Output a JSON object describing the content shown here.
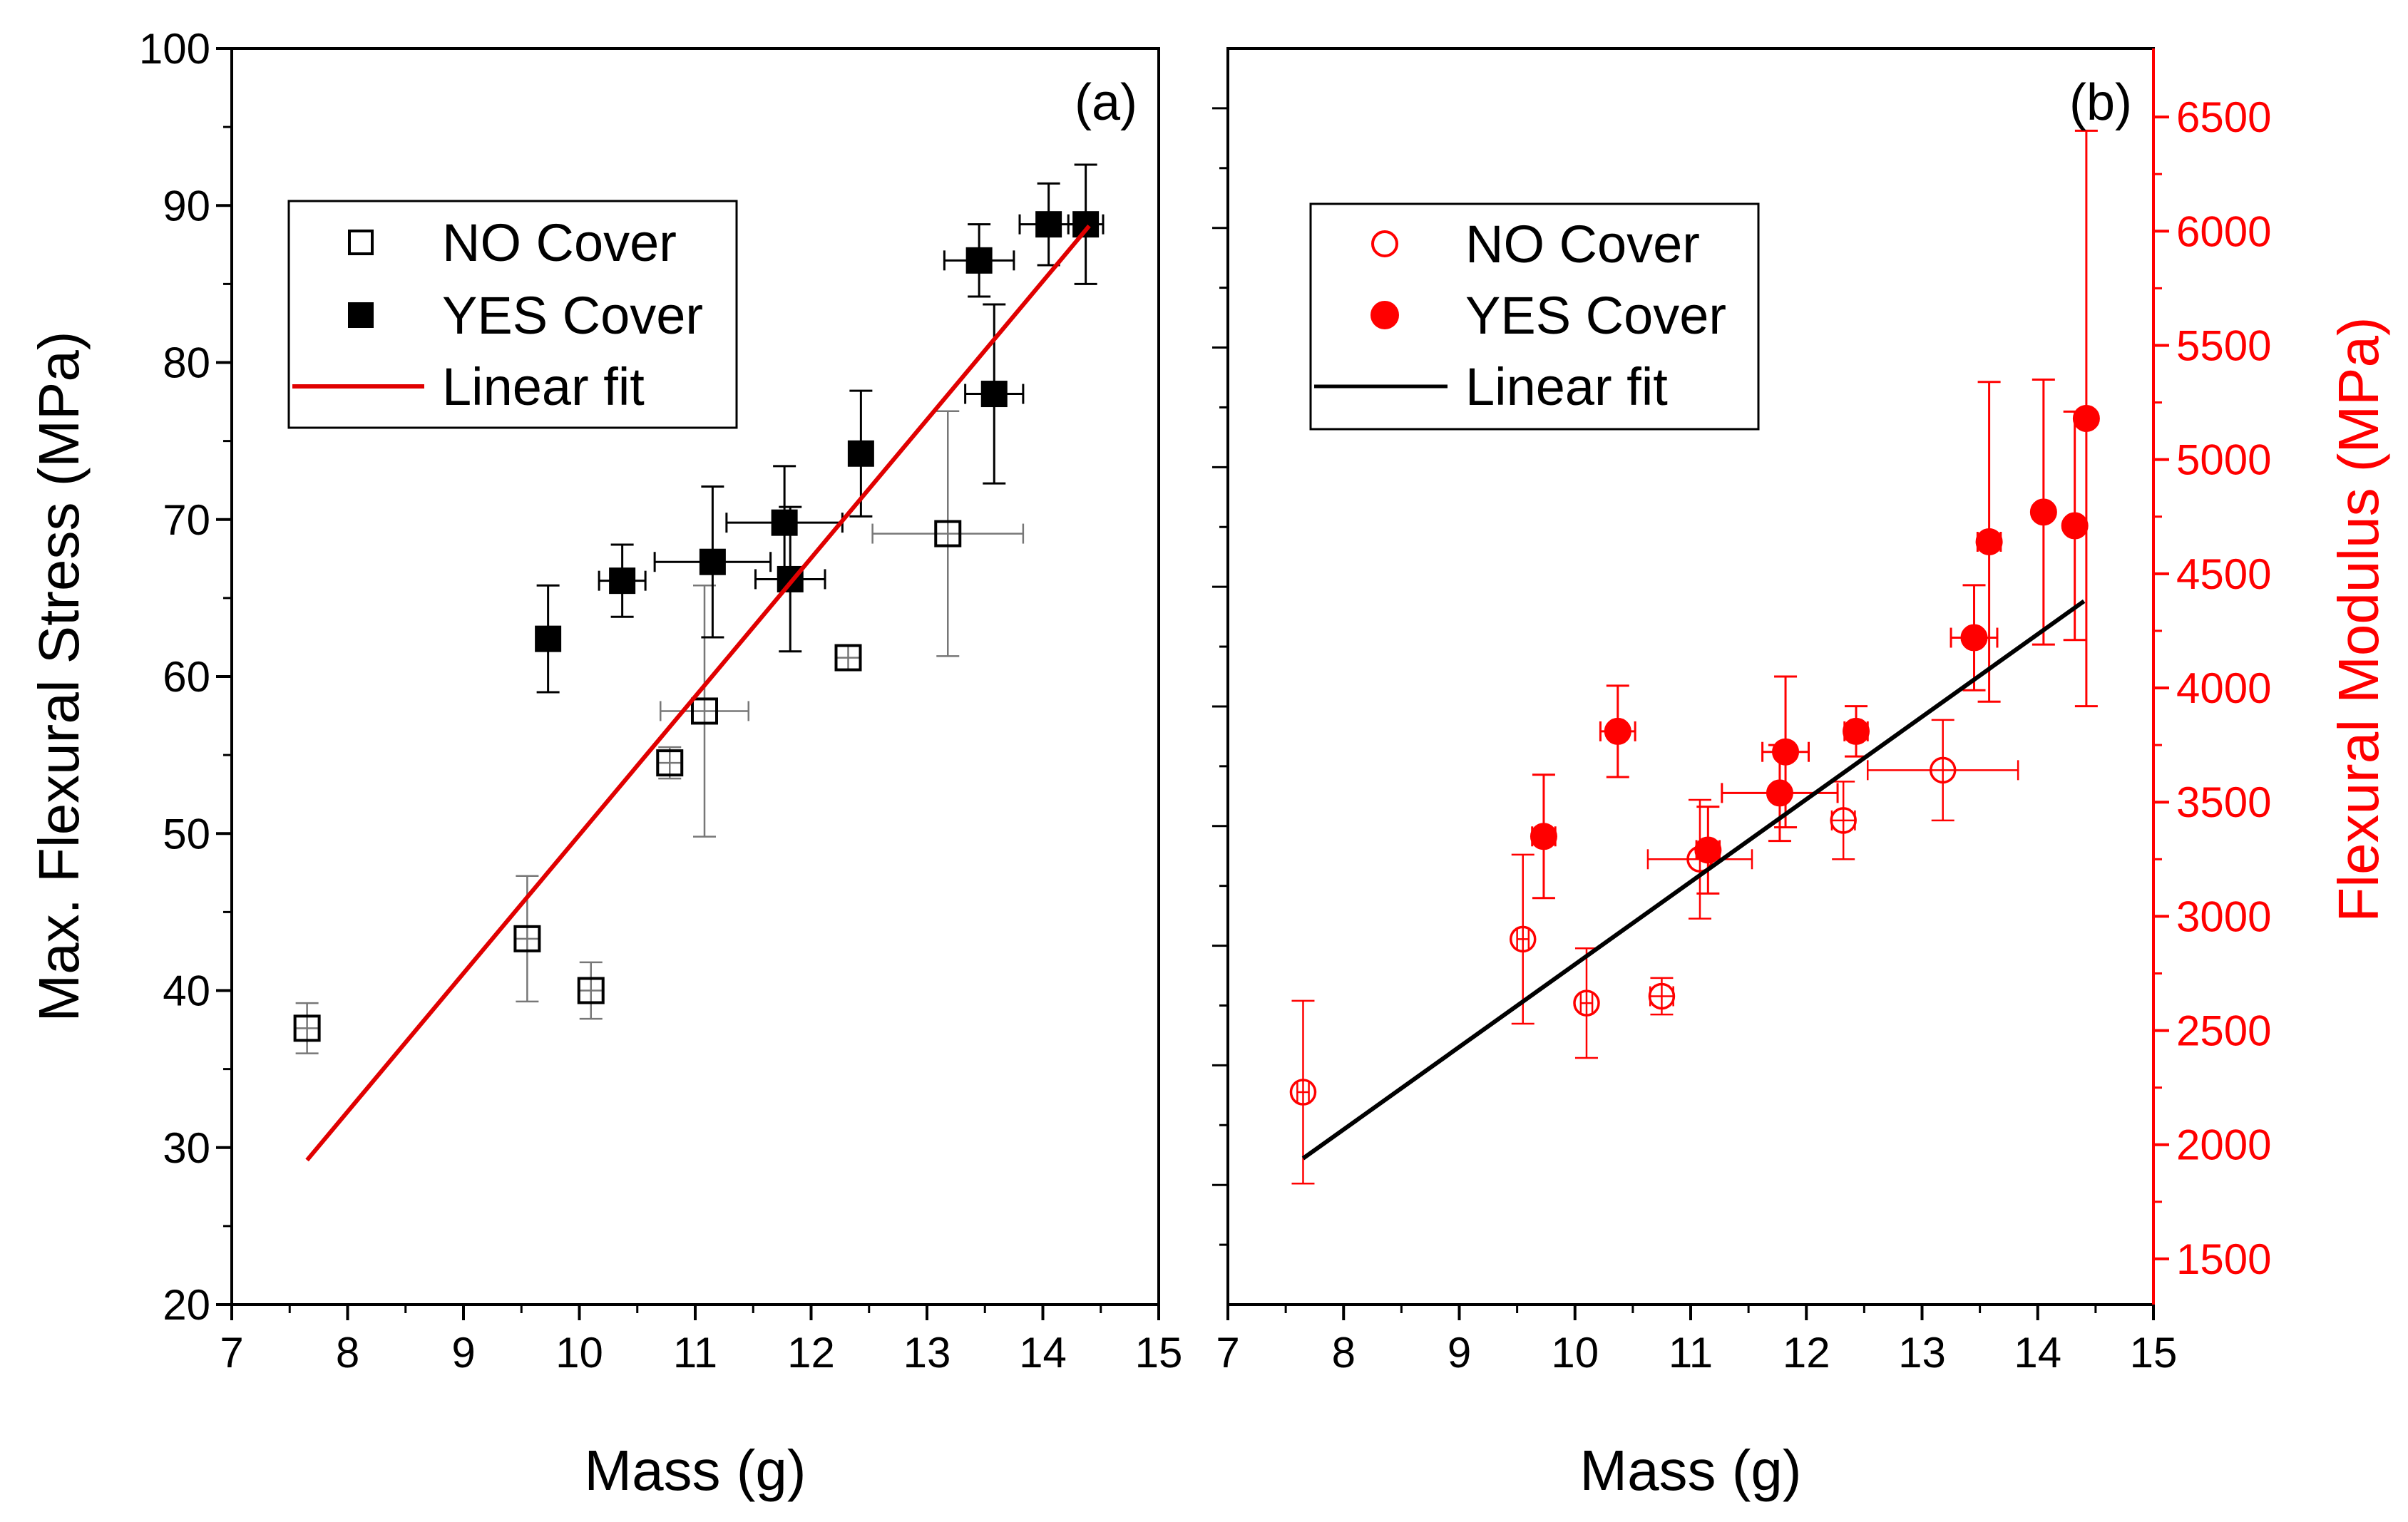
{
  "colors": {
    "red": "#ff0000",
    "black": "#000000",
    "fit_red": "#e00000"
  },
  "chart_data": [
    {
      "type": "scatter",
      "panel_label": "(a)",
      "title": "",
      "xlabel": "Mass (g)",
      "ylabel": "Max. Flexural Stress (MPa)",
      "xlim": [
        7,
        15
      ],
      "ylim": [
        20,
        100
      ],
      "xticks": [
        "7",
        "8",
        "9",
        "10",
        "11",
        "12",
        "13",
        "14",
        "15"
      ],
      "yticks": [
        "20",
        "30",
        "40",
        "50",
        "60",
        "70",
        "80",
        "90",
        "100"
      ],
      "legend_position": "upper-left",
      "series": [
        {
          "name": "NO Cover",
          "marker": "open-square",
          "color": "#000000",
          "points": [
            {
              "x": 7.65,
              "y": 37.6,
              "xerr": 0.1,
              "yerr": 1.6
            },
            {
              "x": 9.55,
              "y": 43.3,
              "xerr": 0.1,
              "yerr": 4.0
            },
            {
              "x": 10.1,
              "y": 40.0,
              "xerr": 0.1,
              "yerr": 1.8
            },
            {
              "x": 10.78,
              "y": 54.5,
              "xerr": 0.1,
              "yerr": 1.0
            },
            {
              "x": 11.08,
              "y": 57.8,
              "xerr": 0.38,
              "yerr": 8.0
            },
            {
              "x": 12.32,
              "y": 61.2,
              "xerr": 0.1,
              "yerr": 0.8
            },
            {
              "x": 13.18,
              "y": 69.1,
              "xerr": 0.65,
              "yerr": 7.8
            }
          ]
        },
        {
          "name": "YES Cover",
          "marker": "filled-square",
          "color": "#000000",
          "points": [
            {
              "x": 9.73,
              "y": 62.4,
              "xerr": 0.1,
              "yerr": 3.4
            },
            {
              "x": 10.37,
              "y": 66.1,
              "xerr": 0.2,
              "yerr": 2.3
            },
            {
              "x": 11.15,
              "y": 67.3,
              "xerr": 0.5,
              "yerr": 4.8
            },
            {
              "x": 11.77,
              "y": 69.8,
              "xerr": 0.5,
              "yerr": 3.6
            },
            {
              "x": 11.82,
              "y": 66.2,
              "xerr": 0.3,
              "yerr": 4.6
            },
            {
              "x": 12.43,
              "y": 74.2,
              "xerr": 0.1,
              "yerr": 4.0
            },
            {
              "x": 13.45,
              "y": 86.5,
              "xerr": 0.3,
              "yerr": 2.3
            },
            {
              "x": 13.58,
              "y": 78.0,
              "xerr": 0.25,
              "yerr": 5.7
            },
            {
              "x": 14.05,
              "y": 88.8,
              "xerr": 0.25,
              "yerr": 2.6
            },
            {
              "x": 14.37,
              "y": 88.8,
              "xerr": 0.15,
              "yerr": 3.8
            }
          ]
        },
        {
          "name": "Linear fit",
          "type": "line",
          "color": "#e00000",
          "points": [
            {
              "x": 7.65,
              "y": 29.2
            },
            {
              "x": 14.4,
              "y": 88.7
            }
          ]
        }
      ]
    },
    {
      "type": "scatter",
      "panel_label": "(b)",
      "title": "",
      "xlabel": "Mass (g)",
      "ylabel": "Flexural Modulus (MPa)",
      "xlim": [
        7,
        15
      ],
      "ylim": [
        1300,
        6800
      ],
      "xticks": [
        "7",
        "8",
        "9",
        "10",
        "11",
        "12",
        "13",
        "14",
        "15"
      ],
      "yticks": [
        "1500",
        "2000",
        "2500",
        "3000",
        "3500",
        "4000",
        "4500",
        "5000",
        "5500",
        "6000",
        "6500"
      ],
      "legend_position": "upper-left",
      "series": [
        {
          "name": "NO Cover",
          "marker": "open-circle",
          "color": "#ff0000",
          "points": [
            {
              "x": 7.65,
              "y": 2230,
              "xerr": 0.05,
              "yerr": 400
            },
            {
              "x": 9.55,
              "y": 2900,
              "xerr": 0.05,
              "yerr": 370
            },
            {
              "x": 10.1,
              "y": 2620,
              "xerr": 0.05,
              "yerr": 240
            },
            {
              "x": 10.75,
              "y": 2650,
              "xerr": 0.1,
              "yerr": 80
            },
            {
              "x": 11.08,
              "y": 3250,
              "xerr": 0.45,
              "yerr": 260
            },
            {
              "x": 12.32,
              "y": 3420,
              "xerr": 0.1,
              "yerr": 170
            },
            {
              "x": 13.18,
              "y": 3640,
              "xerr": 0.65,
              "yerr": 220
            }
          ]
        },
        {
          "name": "YES Cover",
          "marker": "filled-circle",
          "color": "#ff0000",
          "points": [
            {
              "x": 9.73,
              "y": 3350,
              "xerr": 0.1,
              "yerr": 270
            },
            {
              "x": 10.37,
              "y": 3810,
              "xerr": 0.15,
              "yerr": 200
            },
            {
              "x": 11.15,
              "y": 3290,
              "xerr": 0.1,
              "yerr": 190
            },
            {
              "x": 11.77,
              "y": 3540,
              "xerr": 0.5,
              "yerr": 210
            },
            {
              "x": 11.82,
              "y": 3720,
              "xerr": 0.2,
              "yerr": 330
            },
            {
              "x": 12.43,
              "y": 3810,
              "xerr": 0.1,
              "yerr": 110
            },
            {
              "x": 13.45,
              "y": 4220,
              "xerr": 0.2,
              "yerr": 230
            },
            {
              "x": 13.58,
              "y": 4640,
              "xerr": 0.1,
              "yerr": 700
            },
            {
              "x": 14.05,
              "y": 4770,
              "xerr": 0.05,
              "yerr": 580
            },
            {
              "x": 14.32,
              "y": 4710,
              "xerr": 0.05,
              "yerr": 500
            },
            {
              "x": 14.42,
              "y": 5180,
              "xerr": 0.05,
              "yerr": 1260
            }
          ]
        },
        {
          "name": "Linear fit",
          "type": "line",
          "color": "#000000",
          "points": [
            {
              "x": 7.65,
              "y": 1940
            },
            {
              "x": 14.4,
              "y": 4380
            }
          ]
        }
      ]
    }
  ]
}
